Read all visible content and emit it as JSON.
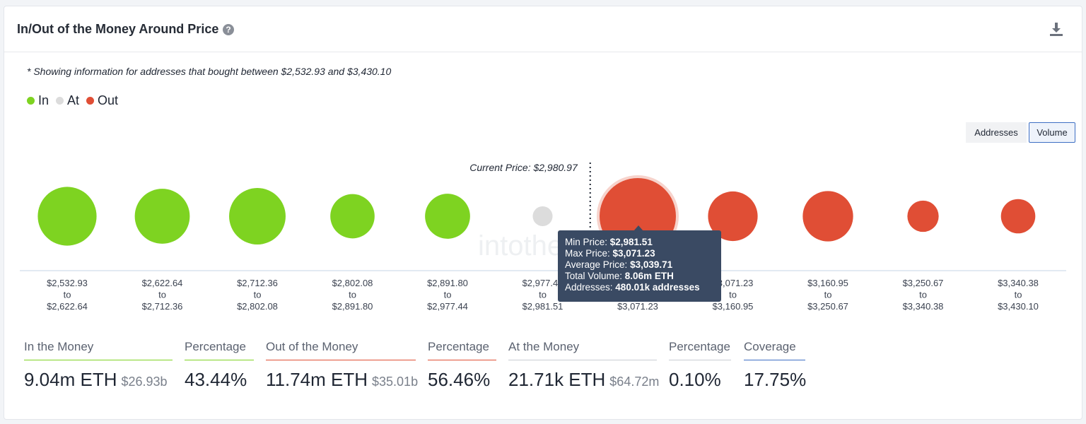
{
  "header": {
    "title": "In/Out of the Money Around Price",
    "help_glyph": "?"
  },
  "note": "* Showing information for addresses that bought between $2,532.93 and $3,430.10",
  "legend": [
    {
      "label": "In",
      "color": "#7ed321"
    },
    {
      "label": "At",
      "color": "#dcdcdc"
    },
    {
      "label": "Out",
      "color": "#e04e35"
    }
  ],
  "toggles": {
    "addresses": "Addresses",
    "volume": "Volume"
  },
  "watermark": "intotheblock",
  "chart_data": {
    "type": "bubble",
    "current_price_label": "Current Price: $2,980.97",
    "current_price": 2980.97,
    "size_metric": "volume",
    "buckets": [
      {
        "from": "$2,532.93",
        "to_word": "to",
        "to": "$2,622.64",
        "status": "in",
        "relative_size": 0.77
      },
      {
        "from": "$2,622.64",
        "to_word": "to",
        "to": "$2,712.36",
        "status": "in",
        "relative_size": 0.72
      },
      {
        "from": "$2,712.36",
        "to_word": "to",
        "to": "$2,802.08",
        "status": "in",
        "relative_size": 0.74
      },
      {
        "from": "$2,802.08",
        "to_word": "to",
        "to": "$2,891.80",
        "status": "in",
        "relative_size": 0.58
      },
      {
        "from": "$2,891.80",
        "to_word": "to",
        "to": "$2,977.44",
        "status": "in",
        "relative_size": 0.59
      },
      {
        "from": "$2,977.44",
        "to_word": "to",
        "to": "$2,981.51",
        "status": "at",
        "relative_size": 0.26
      },
      {
        "from": "$2,981.51",
        "to_word": "to",
        "to": "$3,071.23",
        "status": "out",
        "relative_size": 1.0,
        "highlighted": true
      },
      {
        "from": "$3,071.23",
        "to_word": "to",
        "to": "$3,160.95",
        "status": "out",
        "relative_size": 0.65
      },
      {
        "from": "$3,160.95",
        "to_word": "to",
        "to": "$3,250.67",
        "status": "out",
        "relative_size": 0.66
      },
      {
        "from": "$3,250.67",
        "to_word": "to",
        "to": "$3,340.38",
        "status": "out",
        "relative_size": 0.41
      },
      {
        "from": "$3,340.38",
        "to_word": "to",
        "to": "$3,430.10",
        "status": "out",
        "relative_size": 0.45
      }
    ],
    "colors": {
      "in": "#7ed321",
      "at": "#dcdcdc",
      "out": "#e04e35"
    }
  },
  "tooltip": {
    "rows": [
      {
        "label": "Min Price: ",
        "value": "$2,981.51"
      },
      {
        "label": "Max Price: ",
        "value": "$3,071.23"
      },
      {
        "label": "Average Price: ",
        "value": "$3,039.71"
      },
      {
        "label": "Total Volume: ",
        "value": "8.06m ETH"
      },
      {
        "label": "Addresses: ",
        "value": "480.01k addresses"
      }
    ]
  },
  "stats": [
    {
      "label": "In the Money",
      "value": "9.04m ETH",
      "sub": "$26.93b",
      "color": "#7ed321"
    },
    {
      "label": "Percentage",
      "value": "43.44%",
      "sub": "",
      "color": "#7ed321"
    },
    {
      "label": "Out of the Money",
      "value": "11.74m ETH",
      "sub": "$35.01b",
      "color": "#e04e35"
    },
    {
      "label": "Percentage",
      "value": "56.46%",
      "sub": "",
      "color": "#e04e35"
    },
    {
      "label": "At the Money",
      "value": "21.71k ETH",
      "sub": "$64.72m",
      "color": "#c9cdd3"
    },
    {
      "label": "Percentage",
      "value": "0.10%",
      "sub": "",
      "color": "#c9cdd3"
    },
    {
      "label": "Coverage",
      "value": "17.75%",
      "sub": "",
      "color": "#3e6fc4"
    }
  ]
}
